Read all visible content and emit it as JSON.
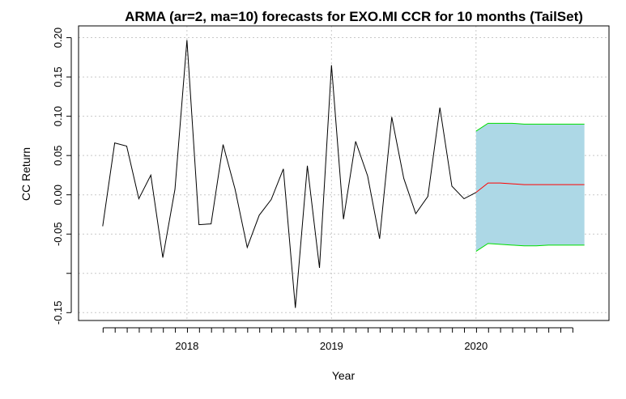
{
  "chart_data": {
    "type": "line",
    "title": "ARMA (ar=2, ma=10) forecasts for EXO.MI CCR for 10 months (TailSet)",
    "xlabel": "Year",
    "ylabel": "CC Return",
    "xlim": [
      2017.25,
      2020.92
    ],
    "ylim": [
      -0.16,
      0.215
    ],
    "x_ticks": [
      2018,
      2019,
      2020
    ],
    "x_tick_labels": [
      "2018",
      "2019",
      "2020"
    ],
    "y_ticks": [
      -0.15,
      -0.1,
      -0.05,
      0.0,
      0.05,
      0.1,
      0.15,
      0.2
    ],
    "y_tick_labels": [
      "-0.15",
      "",
      "-0.05",
      "0.00",
      "0.05",
      "0.10",
      "0.15",
      "0.20"
    ],
    "x_minor_ticks_per_year": 12,
    "x_minor_tick_range": [
      2017.42,
      2020.75
    ],
    "grid": true,
    "colors": {
      "actual_line": "#000000",
      "forecast_line": "#ff0000",
      "interval_line": "#00dd00",
      "interval_fill": "#add8e6",
      "grid": "#c8c8c8"
    },
    "series": [
      {
        "role": "actual",
        "x": [
          2017.417,
          2017.5,
          2017.583,
          2017.667,
          2017.75,
          2017.833,
          2017.917,
          2018.0,
          2018.083,
          2018.167,
          2018.25,
          2018.333,
          2018.417,
          2018.5,
          2018.583,
          2018.667,
          2018.75,
          2018.833,
          2018.917,
          2019.0,
          2019.083,
          2019.167,
          2019.25,
          2019.333,
          2019.417,
          2019.5,
          2019.583,
          2019.667,
          2019.75,
          2019.833,
          2019.917,
          2020.0
        ],
        "values": [
          -0.04,
          0.066,
          0.062,
          -0.005,
          0.025,
          -0.08,
          0.007,
          0.197,
          -0.038,
          -0.037,
          0.064,
          0.007,
          -0.067,
          -0.026,
          -0.006,
          0.033,
          -0.144,
          0.037,
          -0.093,
          0.165,
          -0.031,
          0.068,
          0.024,
          -0.056,
          0.099,
          0.021,
          -0.024,
          -0.002,
          0.111,
          0.011,
          -0.005,
          0.003
        ]
      },
      {
        "role": "forecast",
        "x": [
          2020.0,
          2020.083,
          2020.167,
          2020.25,
          2020.333,
          2020.417,
          2020.5,
          2020.583,
          2020.667,
          2020.75
        ],
        "values": [
          0.003,
          0.015,
          0.015,
          0.014,
          0.013,
          0.013,
          0.013,
          0.013,
          0.013,
          0.013
        ]
      },
      {
        "role": "upper",
        "x": [
          2020.0,
          2020.083,
          2020.167,
          2020.25,
          2020.333,
          2020.417,
          2020.5,
          2020.583,
          2020.667,
          2020.75
        ],
        "values": [
          0.081,
          0.091,
          0.091,
          0.091,
          0.09,
          0.09,
          0.09,
          0.09,
          0.09,
          0.09
        ]
      },
      {
        "role": "lower",
        "x": [
          2020.0,
          2020.083,
          2020.167,
          2020.25,
          2020.333,
          2020.417,
          2020.5,
          2020.583,
          2020.667,
          2020.75
        ],
        "values": [
          -0.072,
          -0.062,
          -0.063,
          -0.064,
          -0.065,
          -0.065,
          -0.064,
          -0.064,
          -0.064,
          -0.064
        ]
      }
    ]
  }
}
